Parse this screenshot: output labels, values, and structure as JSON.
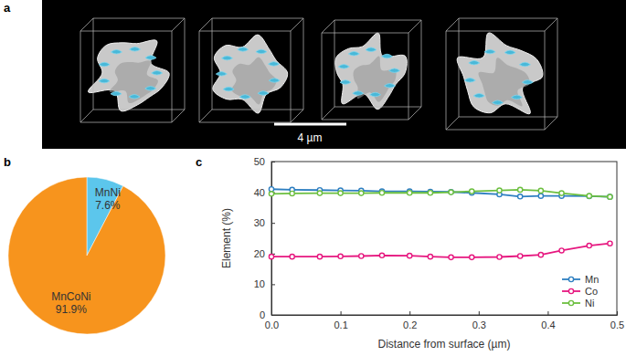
{
  "image_panel": {
    "label": "a",
    "scale_bar": "4 µm"
  },
  "chart_data": [
    {
      "type": "pie",
      "panel_label": "b",
      "categories": [
        "MnNi",
        "MnCoNi"
      ],
      "values": [
        7.6,
        91.9
      ],
      "value_labels": [
        "7.6%",
        "91.9%"
      ],
      "colors": [
        "#5cc6ec",
        "#f7941d"
      ],
      "data_labels": true
    },
    {
      "type": "line",
      "panel_label": "c",
      "xlabel": "Distance from surface (µm)",
      "ylabel": "Element (%)",
      "x": [
        0,
        0.03,
        0.07,
        0.1,
        0.13,
        0.16,
        0.2,
        0.23,
        0.26,
        0.29,
        0.33,
        0.36,
        0.39,
        0.42,
        0.46,
        0.49
      ],
      "series": [
        {
          "name": "Mn",
          "color": "#2e7fc1",
          "marker": "circle",
          "values": [
            41,
            40.8,
            40.7,
            40.6,
            40.5,
            40.3,
            40.3,
            40.2,
            40.1,
            39.8,
            39.3,
            38.6,
            38.8,
            38.8,
            38.7,
            38.5
          ]
        },
        {
          "name": "Co",
          "color": "#e6177f",
          "marker": "circle",
          "values": [
            19,
            19,
            19,
            19.1,
            19.2,
            19.4,
            19.3,
            19,
            18.8,
            18.8,
            18.9,
            19.2,
            19.6,
            21,
            22.6,
            23.3
          ]
        },
        {
          "name": "Ni",
          "color": "#6cbf3f",
          "marker": "circle",
          "values": [
            39.5,
            39.6,
            39.7,
            39.7,
            39.7,
            39.8,
            39.8,
            39.8,
            40,
            40.3,
            40.6,
            40.8,
            40.5,
            39.7,
            38.8,
            38.5
          ]
        }
      ],
      "xlim": [
        0,
        0.5
      ],
      "xticks": [
        {
          "value": 0,
          "label": "0.0"
        },
        0.1,
        0.2,
        0.3,
        0.4,
        0.5
      ],
      "ylim": [
        0,
        50
      ],
      "yticks": [
        0,
        10,
        20,
        30,
        40,
        50
      ],
      "legend": "lower right",
      "grid": false
    }
  ]
}
